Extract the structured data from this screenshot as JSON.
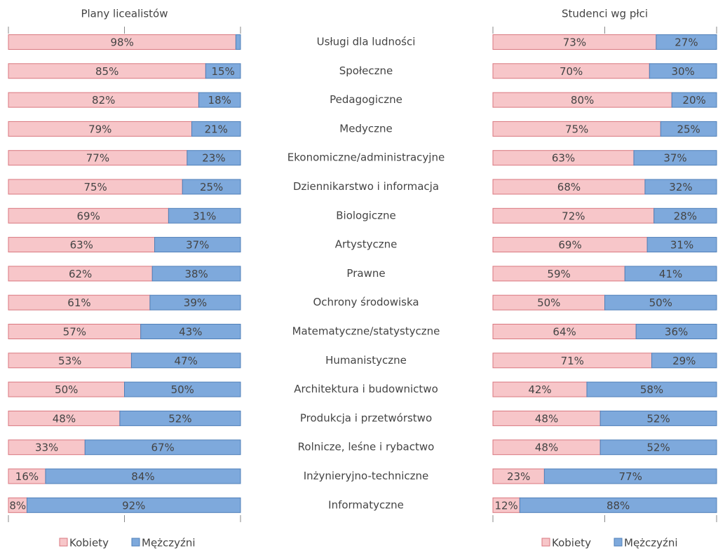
{
  "chart_data": [
    {
      "type": "stacked_barh",
      "title": "Plany licealistów",
      "categories": [
        "Usługi dla ludności",
        "Społeczne",
        "Pedagogiczne",
        "Medyczne",
        "Ekonomiczne/administracyjne",
        "Dziennikarstwo i informacja",
        "Biologiczne",
        "Artystyczne",
        "Prawne",
        "Ochrony środowiska",
        "Matematyczne/statystyczne",
        "Humanistyczne",
        "Architektura i budownictwo",
        "Produkcja i przetwórstwo",
        "Rolnicze, leśne i rybactwo",
        "Inżynieryjno-techniczne",
        "Informatyczne"
      ],
      "xlim": [
        0,
        100
      ],
      "xticks": [
        0,
        50,
        100
      ],
      "series": [
        {
          "name": "Kobiety",
          "color": "#f7c6c9",
          "values": [
            98,
            85,
            82,
            79,
            77,
            75,
            69,
            63,
            62,
            61,
            57,
            53,
            50,
            48,
            33,
            16,
            8
          ],
          "value_labels": [
            "98%",
            "85%",
            "82%",
            "79%",
            "77%",
            "75%",
            "69%",
            "63%",
            "62%",
            "61%",
            "57%",
            "53%",
            "50%",
            "48%",
            "33%",
            "16%",
            "8%"
          ]
        },
        {
          "name": "Mężczyźni",
          "color": "#7ea9dc",
          "values": [
            2,
            15,
            18,
            21,
            23,
            25,
            31,
            37,
            38,
            39,
            43,
            47,
            50,
            52,
            67,
            84,
            92
          ],
          "value_labels": [
            null,
            "15%",
            "18%",
            "21%",
            "23%",
            "25%",
            "31%",
            "37%",
            "38%",
            "39%",
            "43%",
            "47%",
            "50%",
            "52%",
            "67%",
            "84%",
            "92%"
          ]
        }
      ]
    },
    {
      "type": "stacked_barh",
      "title": "Studenci wg płci",
      "xlim": [
        0,
        100
      ],
      "xticks": [
        0,
        50,
        100
      ],
      "series": [
        {
          "name": "Kobiety",
          "color": "#f7c6c9",
          "values": [
            73,
            70,
            80,
            75,
            63,
            68,
            72,
            69,
            59,
            50,
            64,
            71,
            42,
            48,
            48,
            23,
            12
          ],
          "value_labels": [
            "73%",
            "70%",
            "80%",
            "75%",
            "63%",
            "68%",
            "72%",
            "69%",
            "59%",
            "50%",
            "64%",
            "71%",
            "42%",
            "48%",
            "48%",
            "23%",
            "12%"
          ]
        },
        {
          "name": "Mężczyźni",
          "color": "#7ea9dc",
          "values": [
            27,
            30,
            20,
            25,
            37,
            32,
            28,
            31,
            41,
            50,
            36,
            29,
            58,
            52,
            52,
            77,
            88
          ],
          "value_labels": [
            "27%",
            "30%",
            "20%",
            "25%",
            "37%",
            "32%",
            "28%",
            "31%",
            "41%",
            "50%",
            "36%",
            "29%",
            "58%",
            "52%",
            "52%",
            "77%",
            "88%"
          ]
        }
      ]
    }
  ]
}
